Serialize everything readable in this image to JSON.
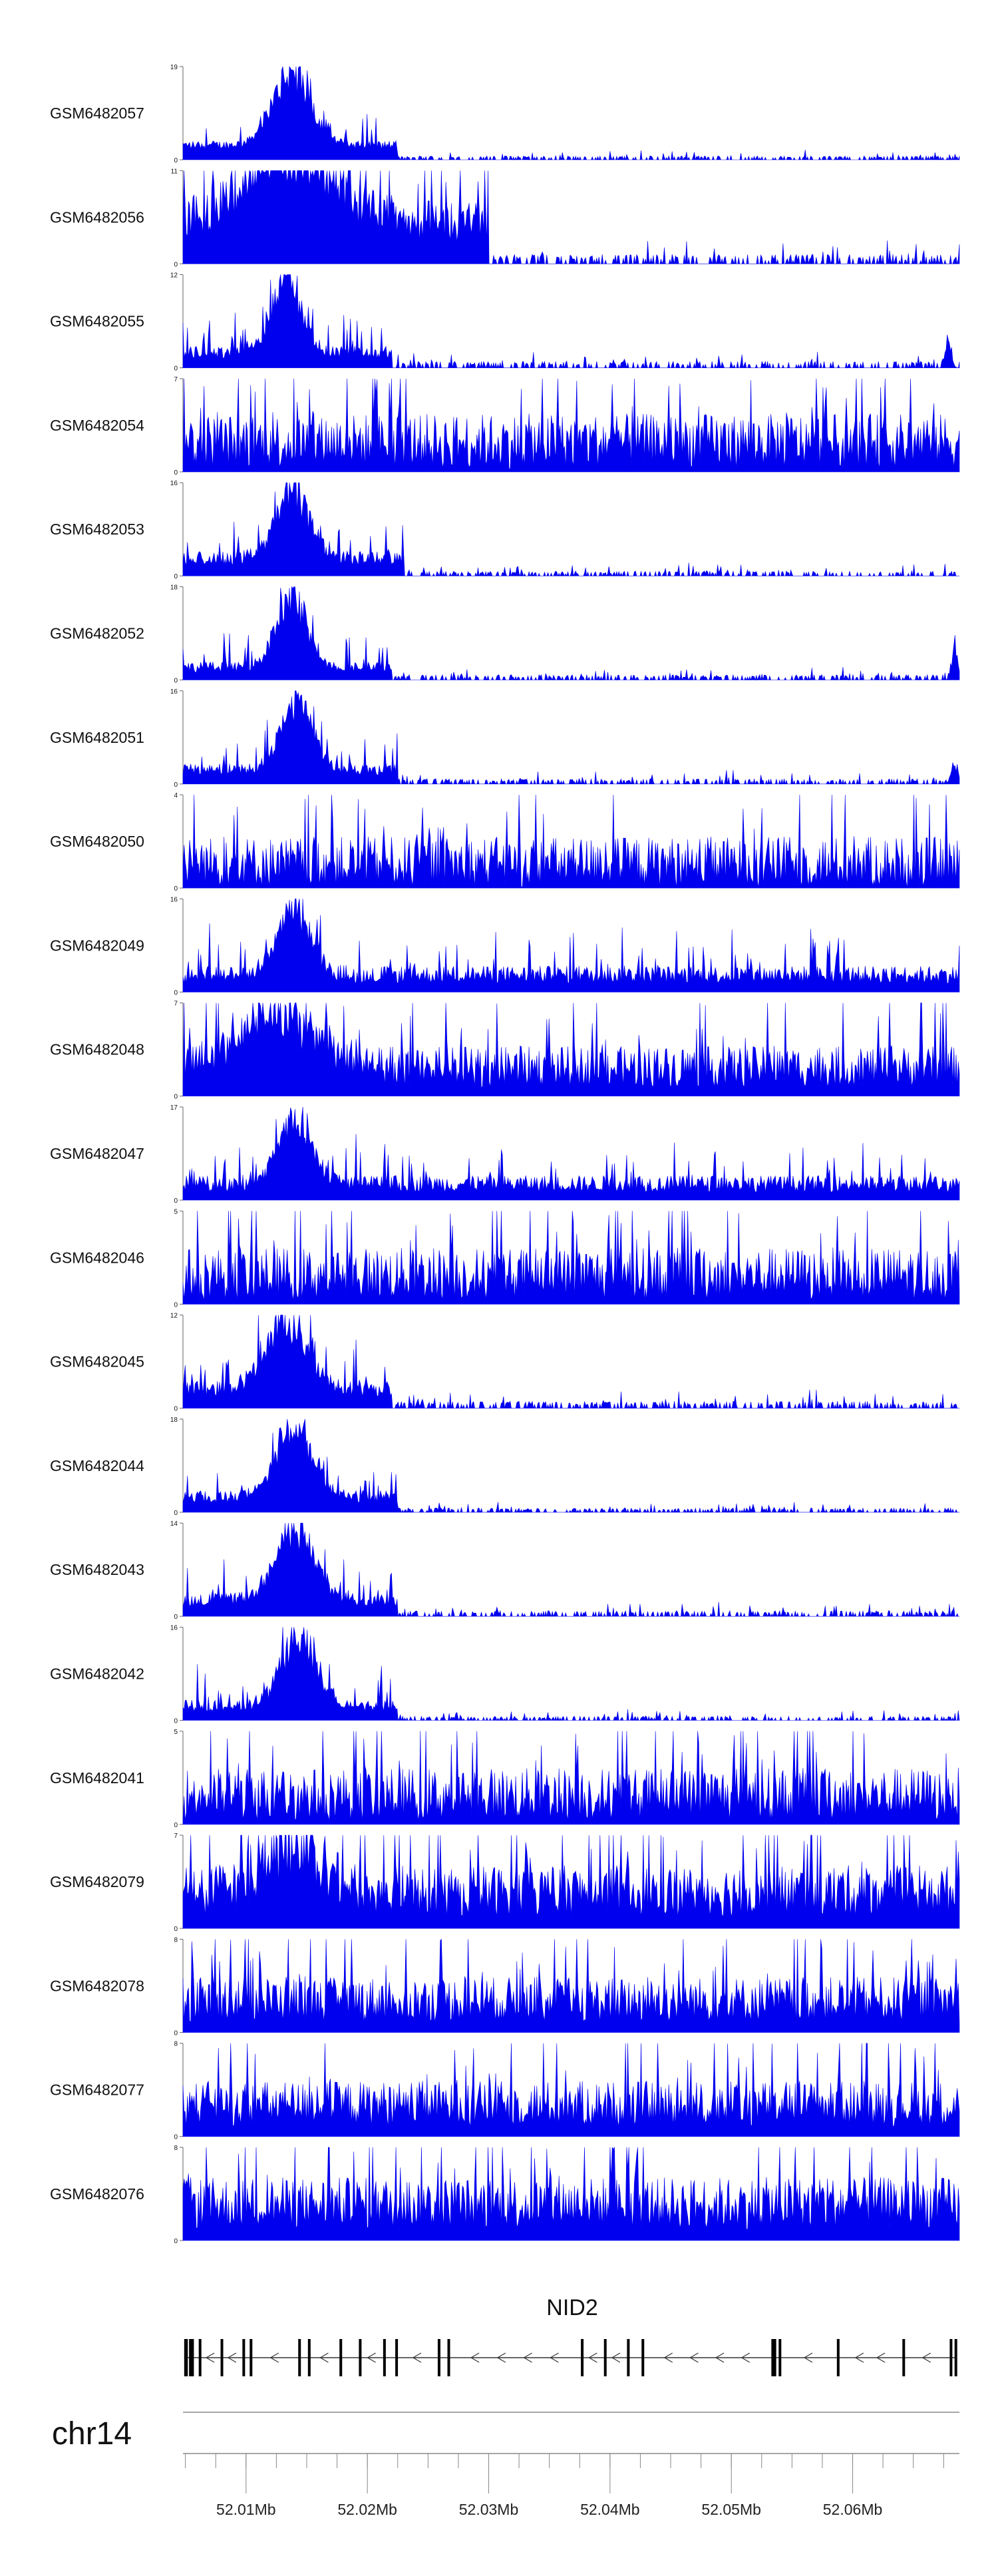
{
  "chart_data": {
    "type": "area",
    "genome_region": {
      "chromosome": "chr14",
      "start_mb": 52.0048,
      "end_mb": 52.0688
    },
    "series_color": "#0000ee",
    "tracks": [
      {
        "name": "GSM6482057",
        "ymax": "19",
        "ymin": "0",
        "profile": {
          "peaks": [
            {
              "center": 52.0138,
              "height": 19,
              "width": 0.0028
            }
          ],
          "base": 3,
          "noise": 0.3,
          "tail_end": 52.0225,
          "tail_height": 1.2
        }
      },
      {
        "name": "GSM6482056",
        "ymax": "11",
        "ymin": "0",
        "profile": {
          "peaks": [
            {
              "center": 52.0135,
              "height": 10,
              "width": 0.0065
            }
          ],
          "base": 5,
          "noise": 0.5,
          "tail_end": 52.03,
          "tail_height": 1.5
        }
      },
      {
        "name": "GSM6482055",
        "ymax": "12",
        "ymin": "0",
        "profile": {
          "peaks": [
            {
              "center": 52.0133,
              "height": 12,
              "width": 0.0022
            },
            {
              "center": 52.0679,
              "height": 5,
              "width": 0.0004
            }
          ],
          "base": 2,
          "noise": 0.4,
          "tail_end": 52.022,
          "tail_height": 1.2
        }
      },
      {
        "name": "GSM6482054",
        "ymax": "7",
        "ymin": "0",
        "profile": {
          "peaks": [],
          "base": 2.3,
          "noise": 0.9,
          "tail_end": 52.0688,
          "tail_height": 2.3
        }
      },
      {
        "name": "GSM6482053",
        "ymax": "16",
        "ymin": "0",
        "profile": {
          "peaks": [
            {
              "center": 52.0138,
              "height": 16,
              "width": 0.0025
            }
          ],
          "base": 3,
          "noise": 0.4,
          "tail_end": 52.023,
          "tail_height": 1.2
        }
      },
      {
        "name": "GSM6482052",
        "ymax": "18",
        "ymin": "0",
        "profile": {
          "peaks": [
            {
              "center": 52.0138,
              "height": 17,
              "width": 0.0023
            },
            {
              "center": 52.0684,
              "height": 8,
              "width": 0.0004
            }
          ],
          "base": 2.5,
          "noise": 0.4,
          "tail_end": 52.022,
          "tail_height": 1.5
        }
      },
      {
        "name": "GSM6482051",
        "ymax": "16",
        "ymin": "0",
        "profile": {
          "peaks": [
            {
              "center": 52.0142,
              "height": 15,
              "width": 0.0023
            },
            {
              "center": 52.0684,
              "height": 4,
              "width": 0.0005
            }
          ],
          "base": 2.5,
          "noise": 0.4,
          "tail_end": 52.0225,
          "tail_height": 1.3
        }
      },
      {
        "name": "GSM6482050",
        "ymax": "4",
        "ymin": "0",
        "profile": {
          "peaks": [],
          "base": 1.1,
          "noise": 1.0,
          "tail_end": 52.0688,
          "tail_height": 1.1
        }
      },
      {
        "name": "GSM6482049",
        "ymax": "16",
        "ymin": "0",
        "profile": {
          "peaks": [
            {
              "center": 52.014,
              "height": 15,
              "width": 0.0025
            }
          ],
          "base": 3,
          "noise": 0.5,
          "tail_end": 52.0688,
          "tail_height": 1.5
        }
      },
      {
        "name": "GSM6482048",
        "ymax": "7",
        "ymin": "0",
        "profile": {
          "peaks": [
            {
              "center": 52.0128,
              "height": 5,
              "width": 0.0055
            }
          ],
          "base": 2.2,
          "noise": 0.7,
          "tail_end": 52.0688,
          "tail_height": 1.5
        }
      },
      {
        "name": "GSM6482047",
        "ymax": "17",
        "ymin": "0",
        "profile": {
          "peaks": [
            {
              "center": 52.014,
              "height": 15,
              "width": 0.0025
            }
          ],
          "base": 3,
          "noise": 0.5,
          "tail_end": 52.0688,
          "tail_height": 1.3
        }
      },
      {
        "name": "GSM6482046",
        "ymax": "5",
        "ymin": "0",
        "profile": {
          "peaks": [],
          "base": 1.6,
          "noise": 0.9,
          "tail_end": 52.0688,
          "tail_height": 1.6
        }
      },
      {
        "name": "GSM6482045",
        "ymax": "12",
        "ymin": "0",
        "profile": {
          "peaks": [
            {
              "center": 52.0133,
              "height": 11,
              "width": 0.003
            }
          ],
          "base": 2.5,
          "noise": 0.4,
          "tail_end": 52.022,
          "tail_height": 1.3
        }
      },
      {
        "name": "GSM6482044",
        "ymax": "18",
        "ymin": "0",
        "profile": {
          "peaks": [
            {
              "center": 52.014,
              "height": 17,
              "width": 0.0027
            }
          ],
          "base": 3,
          "noise": 0.4,
          "tail_end": 52.0225,
          "tail_height": 1.2
        }
      },
      {
        "name": "GSM6482043",
        "ymax": "14",
        "ymin": "0",
        "profile": {
          "peaks": [
            {
              "center": 52.014,
              "height": 14,
              "width": 0.0028
            }
          ],
          "base": 2.5,
          "noise": 0.4,
          "tail_end": 52.0225,
          "tail_height": 1.2
        }
      },
      {
        "name": "GSM6482042",
        "ymax": "16",
        "ymin": "0",
        "profile": {
          "peaks": [
            {
              "center": 52.0143,
              "height": 16,
              "width": 0.0025
            }
          ],
          "base": 2.5,
          "noise": 0.4,
          "tail_end": 52.0225,
          "tail_height": 1.0
        }
      },
      {
        "name": "GSM6482041",
        "ymax": "5",
        "ymin": "0",
        "profile": {
          "peaks": [],
          "base": 1.6,
          "noise": 0.9,
          "tail_end": 52.0688,
          "tail_height": 1.6
        }
      },
      {
        "name": "GSM6482079",
        "ymax": "7",
        "ymin": "0",
        "profile": {
          "peaks": [
            {
              "center": 52.0138,
              "height": 4,
              "width": 0.0045
            }
          ],
          "base": 2.8,
          "noise": 0.7,
          "tail_end": 52.0688,
          "tail_height": 2.4
        }
      },
      {
        "name": "GSM6482078",
        "ymax": "8",
        "ymin": "0",
        "profile": {
          "peaks": [],
          "base": 2.8,
          "noise": 0.7,
          "tail_end": 52.0688,
          "tail_height": 2.8
        }
      },
      {
        "name": "GSM6482077",
        "ymax": "8",
        "ymin": "0",
        "profile": {
          "peaks": [],
          "base": 2.8,
          "noise": 0.7,
          "tail_end": 52.0688,
          "tail_height": 2.8
        }
      },
      {
        "name": "GSM6482076",
        "ymax": "8",
        "ymin": "0",
        "profile": {
          "peaks": [],
          "base": 3.2,
          "noise": 0.7,
          "tail_end": 52.0688,
          "tail_height": 3.0
        }
      }
    ],
    "gene": {
      "name": "NID2",
      "strand": "-",
      "exons": [
        {
          "start": 52.0049,
          "end": 52.0052
        },
        {
          "start": 52.0053,
          "end": 52.0057
        },
        {
          "start": 52.0061,
          "end": 52.0062
        },
        {
          "start": 52.0079,
          "end": 52.008
        },
        {
          "start": 52.0097,
          "end": 52.0098
        },
        {
          "start": 52.0103,
          "end": 52.0104
        },
        {
          "start": 52.0143,
          "end": 52.0144
        },
        {
          "start": 52.0151,
          "end": 52.0152
        },
        {
          "start": 52.0177,
          "end": 52.0178
        },
        {
          "start": 52.0193,
          "end": 52.0194
        },
        {
          "start": 52.0213,
          "end": 52.0214
        },
        {
          "start": 52.0223,
          "end": 52.0224
        },
        {
          "start": 52.0258,
          "end": 52.0259
        },
        {
          "start": 52.0266,
          "end": 52.0267
        },
        {
          "start": 52.0376,
          "end": 52.0377
        },
        {
          "start": 52.0395,
          "end": 52.0396
        },
        {
          "start": 52.0414,
          "end": 52.0415
        },
        {
          "start": 52.0426,
          "end": 52.0427
        },
        {
          "start": 52.0533,
          "end": 52.0537
        },
        {
          "start": 52.0539,
          "end": 52.054
        },
        {
          "start": 52.0587,
          "end": 52.0588
        },
        {
          "start": 52.0641,
          "end": 52.0642
        },
        {
          "start": 52.068,
          "end": 52.0681
        },
        {
          "start": 52.0684,
          "end": 52.0686
        }
      ]
    },
    "axis": {
      "chromosome_label": "chr14",
      "ticks_mb": [
        52.01,
        52.02,
        52.03,
        52.04,
        52.05,
        52.06
      ],
      "tick_labels": [
        "52.01Mb",
        "52.02Mb",
        "52.03Mb",
        "52.04Mb",
        "52.05Mb",
        "52.06Mb"
      ],
      "minor_step_mb": 0.0025
    }
  }
}
